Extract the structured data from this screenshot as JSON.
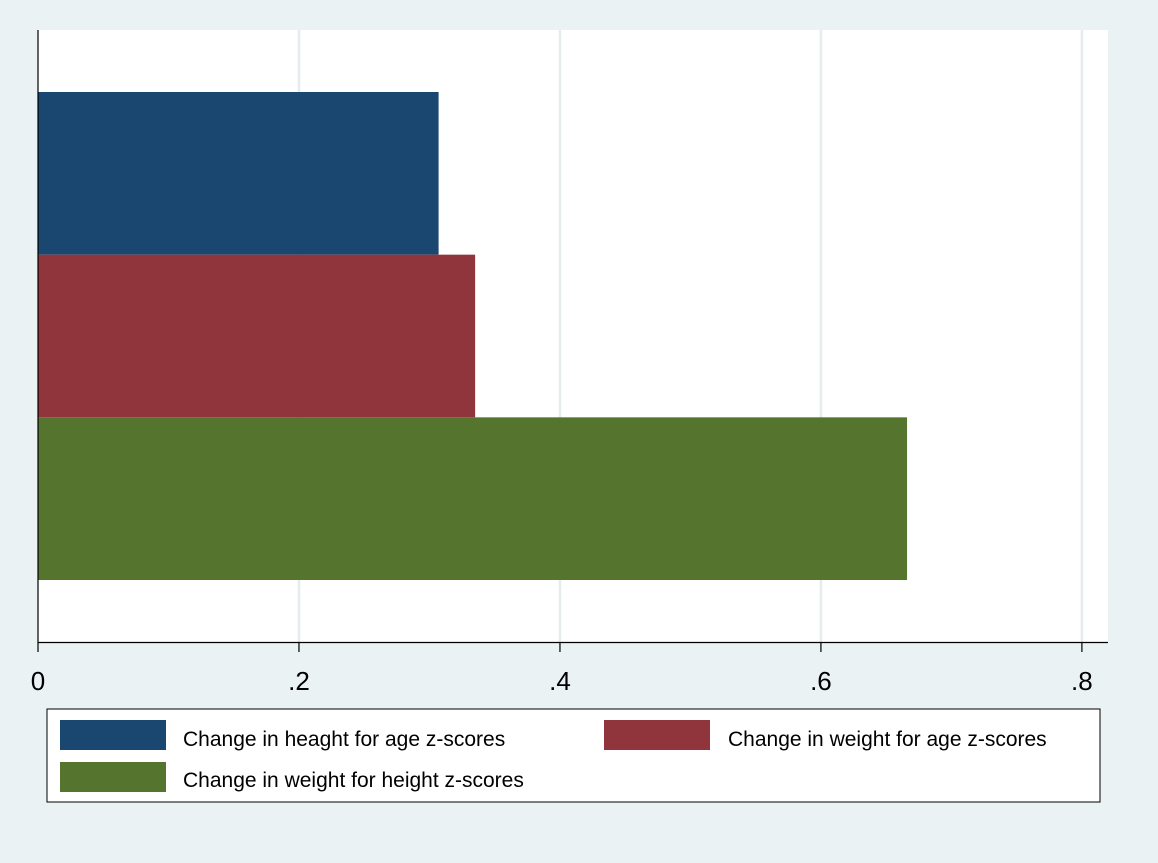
{
  "chart_data": {
    "type": "bar",
    "orientation": "horizontal",
    "title": "",
    "xlabel": "",
    "ylabel": "",
    "xlim": [
      0,
      0.82
    ],
    "x_ticks": [
      0,
      0.2,
      0.4,
      0.6,
      0.8
    ],
    "x_tick_labels": [
      "0",
      ".2",
      ".4",
      ".6",
      ".8"
    ],
    "grid": true,
    "legend_position": "bottom",
    "series": [
      {
        "name": "Change in heaght for age z-scores",
        "value": 0.307,
        "color": "#1a476f"
      },
      {
        "name": "Change in weight for age z-scores",
        "value": 0.335,
        "color": "#90353b"
      },
      {
        "name": "Change in weight for height z-scores",
        "value": 0.666,
        "color": "#55752f"
      }
    ]
  },
  "colors": {
    "background": "#eaf2f3",
    "plot_area": "#ffffff",
    "gridline": "#e4ecee"
  }
}
